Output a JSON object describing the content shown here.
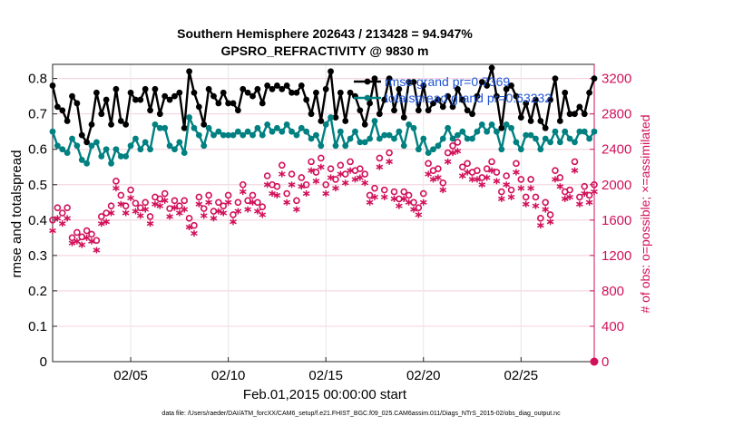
{
  "chart_data": {
    "type": "line",
    "title": "Southern Hemisphere 202643 / 213428 = 94.947%",
    "subtitle": "GPSRO_REFRACTIVITY @ 9830 m",
    "xlabel": "Feb.01,2015 00:00:00 start",
    "ylabel": "rmse and totalspread",
    "y2label": "# of obs: o=possible; ×=assimilated",
    "footnote": "data file: /Users/raeder/DAI/ATM_forcXX/CAM6_setup/f.e21.FHIST_BGC.f09_025.CAM6assim.011/Diags_NTrS_2015-02/obs_diag_output.nc",
    "x_tick_labels": [
      "02/05",
      "02/10",
      "02/15",
      "02/20",
      "02/25"
    ],
    "x_tick_values": [
      5,
      10,
      15,
      20,
      25
    ],
    "xlim": [
      1,
      28.75
    ],
    "ylim": [
      0,
      0.84
    ],
    "y_ticks": [
      "0",
      "0.1",
      "0.2",
      "0.3",
      "0.4",
      "0.5",
      "0.6",
      "0.7",
      "0.8"
    ],
    "y2lim": [
      0,
      3360
    ],
    "y2_ticks": [
      "0",
      "400",
      "800",
      "1200",
      "1600",
      "2000",
      "2400",
      "2800",
      "3200"
    ],
    "grid": true,
    "legend_placement": "top-right",
    "colors": {
      "rmse": "#000000",
      "totalspread": "#008080",
      "obs": "#d1105a",
      "legend_text": "#1f55d8"
    },
    "series": [
      {
        "name": "rmse grand pr=0.7369",
        "axis": "left",
        "x": [
          1,
          1.25,
          1.5,
          1.75,
          2,
          2.25,
          2.5,
          2.75,
          3,
          3.25,
          3.5,
          3.75,
          4,
          4.25,
          4.5,
          4.75,
          5,
          5.25,
          5.5,
          5.75,
          6,
          6.25,
          6.5,
          6.75,
          7,
          7.25,
          7.5,
          7.75,
          8,
          8.25,
          8.5,
          8.75,
          9,
          9.25,
          9.5,
          9.75,
          10,
          10.25,
          10.5,
          10.75,
          11,
          11.25,
          11.5,
          11.75,
          12,
          12.25,
          12.5,
          12.75,
          13,
          13.25,
          13.5,
          13.75,
          14,
          14.25,
          14.5,
          14.75,
          15,
          15.25,
          15.5,
          15.75,
          16,
          16.25,
          16.5,
          16.75,
          17,
          17.25,
          17.5,
          17.75,
          18,
          18.25,
          18.5,
          18.75,
          19,
          19.25,
          19.5,
          19.75,
          20,
          20.25,
          20.5,
          20.75,
          21,
          21.25,
          21.5,
          21.75,
          22,
          22.25,
          22.5,
          22.75,
          23,
          23.25,
          23.5,
          23.75,
          24,
          24.25,
          24.5,
          24.75,
          25,
          25.25,
          25.5,
          25.75,
          26,
          26.25,
          26.5,
          26.75,
          27,
          27.25,
          27.5,
          27.75,
          28,
          28.25,
          28.5,
          28.75
        ],
        "values": [
          0.78,
          0.72,
          0.71,
          0.68,
          0.75,
          0.73,
          0.64,
          0.62,
          0.67,
          0.76,
          0.7,
          0.74,
          0.67,
          0.77,
          0.68,
          0.67,
          0.76,
          0.74,
          0.74,
          0.77,
          0.71,
          0.77,
          0.7,
          0.75,
          0.74,
          0.75,
          0.76,
          0.66,
          0.82,
          0.76,
          0.72,
          0.67,
          0.77,
          0.75,
          0.73,
          0.76,
          0.73,
          0.73,
          0.71,
          0.77,
          0.76,
          0.75,
          0.77,
          0.73,
          0.78,
          0.77,
          0.78,
          0.77,
          0.78,
          0.76,
          0.76,
          0.78,
          0.74,
          0.7,
          0.76,
          0.68,
          0.77,
          0.82,
          0.69,
          0.76,
          0.68,
          0.76,
          0.75,
          0.71,
          0.67,
          0.73,
          0.8,
          0.7,
          0.74,
          0.8,
          0.71,
          0.77,
          0.69,
          0.79,
          0.79,
          0.71,
          0.78,
          0.71,
          0.73,
          0.74,
          0.72,
          0.75,
          0.72,
          0.77,
          0.74,
          0.71,
          0.7,
          0.75,
          0.79,
          0.78,
          0.83,
          0.75,
          0.66,
          0.77,
          0.78,
          0.75,
          0.69,
          0.73,
          0.68,
          0.74,
          0.68,
          0.66,
          0.74,
          0.8,
          0.68,
          0.76,
          0.7,
          0.7,
          0.72,
          0.7,
          0.76,
          0.8
        ]
      },
      {
        "name": "totalspread grand pr=0.63232",
        "axis": "left",
        "x": [
          1,
          1.25,
          1.5,
          1.75,
          2,
          2.25,
          2.5,
          2.75,
          3,
          3.25,
          3.5,
          3.75,
          4,
          4.25,
          4.5,
          4.75,
          5,
          5.25,
          5.5,
          5.75,
          6,
          6.25,
          6.5,
          6.75,
          7,
          7.25,
          7.5,
          7.75,
          8,
          8.25,
          8.5,
          8.75,
          9,
          9.25,
          9.5,
          9.75,
          10,
          10.25,
          10.5,
          10.75,
          11,
          11.25,
          11.5,
          11.75,
          12,
          12.25,
          12.5,
          12.75,
          13,
          13.25,
          13.5,
          13.75,
          14,
          14.25,
          14.5,
          14.75,
          15,
          15.25,
          15.5,
          15.75,
          16,
          16.25,
          16.5,
          16.75,
          17,
          17.25,
          17.5,
          17.75,
          18,
          18.25,
          18.5,
          18.75,
          19,
          19.25,
          19.5,
          19.75,
          20,
          20.25,
          20.5,
          20.75,
          21,
          21.25,
          21.5,
          21.75,
          22,
          22.25,
          22.5,
          22.75,
          23,
          23.25,
          23.5,
          23.75,
          24,
          24.25,
          24.5,
          24.75,
          25,
          25.25,
          25.5,
          25.75,
          26,
          26.25,
          26.5,
          26.75,
          27,
          27.25,
          27.5,
          27.75,
          28,
          28.25,
          28.5,
          28.75
        ],
        "values": [
          0.65,
          0.61,
          0.6,
          0.59,
          0.63,
          0.61,
          0.57,
          0.56,
          0.61,
          0.62,
          0.58,
          0.6,
          0.56,
          0.6,
          0.58,
          0.58,
          0.61,
          0.63,
          0.6,
          0.62,
          0.6,
          0.67,
          0.66,
          0.66,
          0.61,
          0.6,
          0.62,
          0.59,
          0.69,
          0.66,
          0.64,
          0.61,
          0.66,
          0.64,
          0.65,
          0.64,
          0.64,
          0.64,
          0.65,
          0.64,
          0.65,
          0.64,
          0.66,
          0.64,
          0.67,
          0.65,
          0.66,
          0.65,
          0.67,
          0.65,
          0.64,
          0.66,
          0.65,
          0.63,
          0.64,
          0.61,
          0.67,
          0.69,
          0.61,
          0.65,
          0.61,
          0.63,
          0.65,
          0.62,
          0.62,
          0.63,
          0.68,
          0.63,
          0.64,
          0.64,
          0.63,
          0.65,
          0.61,
          0.67,
          0.66,
          0.6,
          0.63,
          0.59,
          0.6,
          0.61,
          0.63,
          0.66,
          0.63,
          0.64,
          0.65,
          0.63,
          0.63,
          0.65,
          0.67,
          0.65,
          0.67,
          0.65,
          0.6,
          0.67,
          0.66,
          0.62,
          0.6,
          0.64,
          0.64,
          0.63,
          0.6,
          0.63,
          0.62,
          0.65,
          0.62,
          0.65,
          0.63,
          0.62,
          0.65,
          0.65,
          0.63,
          0.65
        ]
      },
      {
        "name": "obs possible",
        "axis": "right",
        "marker": "circle",
        "x": [
          1,
          1.25,
          1.5,
          1.75,
          2,
          2.25,
          2.5,
          2.75,
          3,
          3.25,
          3.5,
          3.75,
          4,
          4.25,
          4.5,
          4.75,
          5,
          5.25,
          5.5,
          5.75,
          6,
          6.25,
          6.5,
          6.75,
          7,
          7.25,
          7.5,
          7.75,
          8,
          8.25,
          8.5,
          8.75,
          9,
          9.25,
          9.5,
          9.75,
          10,
          10.25,
          10.5,
          10.75,
          11,
          11.25,
          11.5,
          11.75,
          12,
          12.25,
          12.5,
          12.75,
          13,
          13.25,
          13.5,
          13.75,
          14,
          14.25,
          14.5,
          14.75,
          15,
          15.25,
          15.5,
          15.75,
          16,
          16.25,
          16.5,
          16.75,
          17,
          17.25,
          17.5,
          17.75,
          18,
          18.25,
          18.5,
          18.75,
          19,
          19.25,
          19.5,
          19.75,
          20,
          20.25,
          20.5,
          20.75,
          21,
          21.25,
          21.5,
          21.75,
          22,
          22.25,
          22.5,
          22.75,
          23,
          23.25,
          23.5,
          23.75,
          24,
          24.25,
          24.5,
          24.75,
          25,
          25.25,
          25.5,
          25.75,
          26,
          26.25,
          26.5,
          26.75,
          27,
          27.25,
          27.5,
          27.75,
          28,
          28.25,
          28.5,
          28.75
        ],
        "values": [
          1600,
          1740,
          1680,
          1740,
          1400,
          1460,
          1410,
          1480,
          1440,
          1370,
          1640,
          1680,
          1760,
          2040,
          1880,
          1760,
          1940,
          1790,
          1740,
          1800,
          1640,
          1860,
          1840,
          1900,
          1730,
          1820,
          1760,
          1820,
          1620,
          1540,
          1860,
          1730,
          1880,
          1700,
          1800,
          1760,
          1880,
          1660,
          1800,
          2000,
          1820,
          1880,
          1800,
          1750,
          2100,
          2000,
          1980,
          2220,
          1900,
          2120,
          1820,
          2080,
          2000,
          2260,
          2140,
          2300,
          2000,
          2180,
          2060,
          2220,
          2120,
          2260,
          2160,
          2180,
          2120,
          1880,
          1960,
          2300,
          1940,
          2360,
          1920,
          1840,
          1920,
          1880,
          1800,
          1740,
          1900,
          2240,
          2160,
          2180,
          2020,
          2360,
          2440,
          2480,
          2200,
          2240,
          2140,
          2160,
          2080,
          2180,
          2260,
          2140,
          1920,
          2100,
          1940,
          2240,
          2060,
          1860,
          2060,
          1860,
          1620,
          1800,
          1660,
          2160,
          2080,
          1920,
          1940,
          2260,
          1860,
          1980,
          1880,
          2000
        ]
      },
      {
        "name": "obs assimilated",
        "axis": "right",
        "marker": "asterisk",
        "x": [
          1,
          1.25,
          1.5,
          1.75,
          2,
          2.25,
          2.5,
          2.75,
          3,
          3.25,
          3.5,
          3.75,
          4,
          4.25,
          4.5,
          4.75,
          5,
          5.25,
          5.5,
          5.75,
          6,
          6.25,
          6.5,
          6.75,
          7,
          7.25,
          7.5,
          7.75,
          8,
          8.25,
          8.5,
          8.75,
          9,
          9.25,
          9.5,
          9.75,
          10,
          10.25,
          10.5,
          10.75,
          11,
          11.25,
          11.5,
          11.75,
          12,
          12.25,
          12.5,
          12.75,
          13,
          13.25,
          13.5,
          13.75,
          14,
          14.25,
          14.5,
          14.75,
          15,
          15.25,
          15.5,
          15.75,
          16,
          16.25,
          16.5,
          16.75,
          17,
          17.25,
          17.5,
          17.75,
          18,
          18.25,
          18.5,
          18.75,
          19,
          19.25,
          19.5,
          19.75,
          20,
          20.25,
          20.5,
          20.75,
          21,
          21.25,
          21.5,
          21.75,
          22,
          22.25,
          22.5,
          22.75,
          23,
          23.25,
          23.5,
          23.75,
          24,
          24.25,
          24.5,
          24.75,
          25,
          25.25,
          25.5,
          25.75,
          26,
          26.25,
          26.5,
          26.75,
          27,
          27.25,
          27.5,
          27.75,
          28,
          28.25,
          28.5,
          28.75
        ],
        "values": [
          1480,
          1620,
          1560,
          1620,
          1340,
          1360,
          1320,
          1400,
          1360,
          1260,
          1560,
          1580,
          1680,
          1960,
          1780,
          1680,
          1850,
          1700,
          1650,
          1720,
          1560,
          1780,
          1760,
          1820,
          1640,
          1740,
          1680,
          1720,
          1520,
          1450,
          1780,
          1650,
          1800,
          1620,
          1700,
          1680,
          1800,
          1580,
          1700,
          1920,
          1720,
          1800,
          1700,
          1660,
          2000,
          1900,
          1880,
          2120,
          1800,
          2000,
          1720,
          1980,
          1900,
          2160,
          2040,
          2200,
          1900,
          2080,
          1960,
          2120,
          2020,
          2160,
          2060,
          2080,
          2020,
          1800,
          1860,
          2200,
          1860,
          2260,
          1840,
          1760,
          1840,
          1800,
          1720,
          1660,
          1800,
          2120,
          2060,
          2080,
          1940,
          2260,
          2360,
          2380,
          2100,
          2140,
          2060,
          2060,
          2000,
          2080,
          2160,
          2040,
          1840,
          2000,
          1860,
          2140,
          1960,
          1780,
          1960,
          1760,
          1540,
          1720,
          1580,
          2060,
          1980,
          1840,
          1860,
          2160,
          1780,
          1900,
          1800,
          1920
        ]
      }
    ],
    "legend": [
      {
        "name": "rmse grand pr=0.7369",
        "color": "#000000"
      },
      {
        "name": "totalspread grand pr=0.63232",
        "color": "#008080"
      }
    ]
  }
}
